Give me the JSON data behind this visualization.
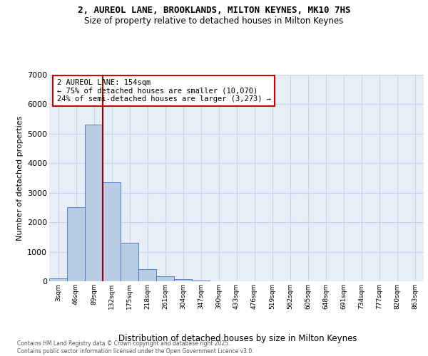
{
  "title1": "2, AUREOL LANE, BROOKLANDS, MILTON KEYNES, MK10 7HS",
  "title2": "Size of property relative to detached houses in Milton Keynes",
  "xlabel": "Distribution of detached houses by size in Milton Keynes",
  "ylabel": "Number of detached properties",
  "categories": [
    "3sqm",
    "46sqm",
    "89sqm",
    "132sqm",
    "175sqm",
    "218sqm",
    "261sqm",
    "304sqm",
    "347sqm",
    "390sqm",
    "433sqm",
    "476sqm",
    "519sqm",
    "562sqm",
    "605sqm",
    "648sqm",
    "691sqm",
    "734sqm",
    "777sqm",
    "820sqm",
    "863sqm"
  ],
  "values": [
    100,
    2500,
    5300,
    3350,
    1300,
    400,
    170,
    70,
    20,
    5,
    3,
    1,
    0,
    0,
    0,
    0,
    0,
    0,
    0,
    0,
    0
  ],
  "bar_color": "#b8cce4",
  "bar_edge_color": "#4472c4",
  "vline_color": "#990000",
  "vline_pos": 2.5,
  "annotation_title": "2 AUREOL LANE: 154sqm",
  "annotation_line1": "← 75% of detached houses are smaller (10,070)",
  "annotation_line2": "24% of semi-detached houses are larger (3,273) →",
  "annotation_box_edgecolor": "#cc0000",
  "ylim_max": 7000,
  "yticks": [
    0,
    1000,
    2000,
    3000,
    4000,
    5000,
    6000,
    7000
  ],
  "grid_color": "#c8d4e8",
  "plot_bg_color": "#e8eef8",
  "footer1": "Contains HM Land Registry data © Crown copyright and database right 2025.",
  "footer2": "Contains public sector information licensed under the Open Government Licence v3.0."
}
